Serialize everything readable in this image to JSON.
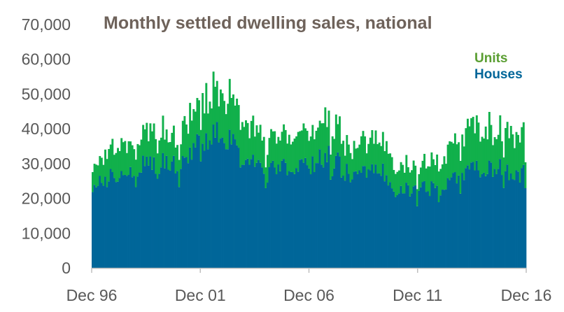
{
  "chart_data": {
    "type": "area",
    "stacked": true,
    "title": "Monthly settled dwelling sales, national",
    "xlabel": "",
    "ylabel": "",
    "ylim": [
      0,
      70000
    ],
    "yticks": [
      0,
      10000,
      20000,
      30000,
      40000,
      50000,
      60000,
      70000
    ],
    "ytick_labels": [
      "0",
      "10,000",
      "20,000",
      "30,000",
      "40,000",
      "50,000",
      "60,000",
      "70,000"
    ],
    "x_range": [
      "Dec 96",
      "Dec 16"
    ],
    "xtick_labels": [
      "Dec 96",
      "Dec 01",
      "Dec 06",
      "Dec 11",
      "Dec 16"
    ],
    "legend_position": "top-right",
    "grid": false,
    "frequency": "monthly",
    "series": [
      {
        "name": "Houses",
        "color": "#006699",
        "anchors": [
          {
            "x": "Dec 96",
            "value": 23000
          },
          {
            "x": "Dec 97",
            "value": 27000
          },
          {
            "x": "Dec 98",
            "value": 29000
          },
          {
            "x": "Dec 99",
            "value": 30500
          },
          {
            "x": "Dec 00",
            "value": 30000
          },
          {
            "x": "Dec 01",
            "value": 37000
          },
          {
            "x": "Dec 02",
            "value": 38500
          },
          {
            "x": "Dec 03",
            "value": 31000
          },
          {
            "x": "Dec 04",
            "value": 27500
          },
          {
            "x": "Dec 05",
            "value": 29000
          },
          {
            "x": "Dec 06",
            "value": 30000
          },
          {
            "x": "Dec 07",
            "value": 32000
          },
          {
            "x": "Dec 08",
            "value": 26000
          },
          {
            "x": "Dec 09",
            "value": 30500
          },
          {
            "x": "Dec 10",
            "value": 24000
          },
          {
            "x": "Dec 11",
            "value": 22000
          },
          {
            "x": "Dec 12",
            "value": 23500
          },
          {
            "x": "Dec 13",
            "value": 26500
          },
          {
            "x": "Dec 14",
            "value": 29000
          },
          {
            "x": "Dec 15",
            "value": 28500
          },
          {
            "x": "Dec 16",
            "value": 27000
          }
        ]
      },
      {
        "name": "Units",
        "color": "#11b04b",
        "anchors": [
          {
            "x": "Dec 96",
            "value": 6500
          },
          {
            "x": "Dec 97",
            "value": 8000
          },
          {
            "x": "Dec 98",
            "value": 8000
          },
          {
            "x": "Dec 99",
            "value": 9500
          },
          {
            "x": "Dec 00",
            "value": 9000
          },
          {
            "x": "Dec 01",
            "value": 12500
          },
          {
            "x": "Dec 02",
            "value": 13000
          },
          {
            "x": "Dec 03",
            "value": 10000
          },
          {
            "x": "Dec 04",
            "value": 9000
          },
          {
            "x": "Dec 05",
            "value": 9500
          },
          {
            "x": "Dec 06",
            "value": 10000
          },
          {
            "x": "Dec 07",
            "value": 11000
          },
          {
            "x": "Dec 08",
            "value": 8000
          },
          {
            "x": "Dec 09",
            "value": 9500
          },
          {
            "x": "Dec 10",
            "value": 7000
          },
          {
            "x": "Dec 11",
            "value": 6500
          },
          {
            "x": "Dec 12",
            "value": 8000
          },
          {
            "x": "Dec 13",
            "value": 11000
          },
          {
            "x": "Dec 14",
            "value": 12000
          },
          {
            "x": "Dec 15",
            "value": 11500
          },
          {
            "x": "Dec 16",
            "value": 11000
          }
        ]
      }
    ]
  },
  "colors": {
    "title": "#6e625a",
    "axis_text": "#595959",
    "axis_line": "#bfbfbf",
    "houses": "#006699",
    "units": "#11b04b",
    "units_legend": "#5a9e32"
  }
}
